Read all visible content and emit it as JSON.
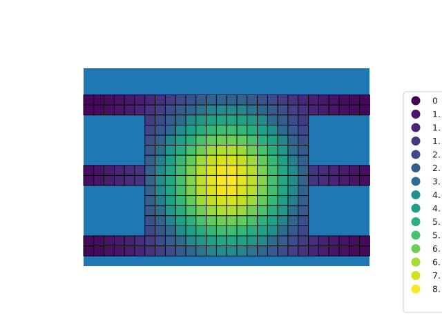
{
  "chart_data": {
    "type": "heatmap",
    "title": "",
    "xlabel": "",
    "ylabel": "",
    "axes_visible": false,
    "background_color": "#1f77b4",
    "colormap": "viridis",
    "value_range": [
      0,
      8.0
    ],
    "legend": {
      "placement": "right",
      "entries": [
        {
          "label": "0",
          "color": "#440154"
        },
        {
          "label": "1.",
          "color": "#481467"
        },
        {
          "label": "1.",
          "color": "#482576"
        },
        {
          "label": "1.",
          "color": "#453781"
        },
        {
          "label": "2.",
          "color": "#3e4a89"
        },
        {
          "label": "2.",
          "color": "#365c8d"
        },
        {
          "label": "3.",
          "color": "#2f6c8e"
        },
        {
          "label": "4.",
          "color": "#21918c"
        },
        {
          "label": "4.",
          "color": "#1fa187"
        },
        {
          "label": "5.",
          "color": "#2ab07f"
        },
        {
          "label": "5.",
          "color": "#48c16e"
        },
        {
          "label": "6.",
          "color": "#6ccd5a"
        },
        {
          "label": "6.",
          "color": "#a5db36"
        },
        {
          "label": "7.",
          "color": "#cde11d"
        },
        {
          "label": "8.",
          "color": "#fde725"
        }
      ]
    },
    "grid": {
      "columns": 28,
      "rows": 19,
      "center_col": 13.5,
      "center_row": 9,
      "peak_value": 8.0,
      "falloff": 0.32,
      "bands": [
        {
          "rows": [
            1,
            2
          ],
          "cols": [
            0,
            27
          ]
        },
        {
          "rows": [
            8,
            9
          ],
          "cols": [
            0,
            27
          ]
        },
        {
          "rows": [
            15,
            16
          ],
          "cols": [
            0,
            27
          ]
        },
        {
          "rows": [
            1,
            16
          ],
          "cols": [
            6,
            21
          ]
        }
      ]
    }
  }
}
